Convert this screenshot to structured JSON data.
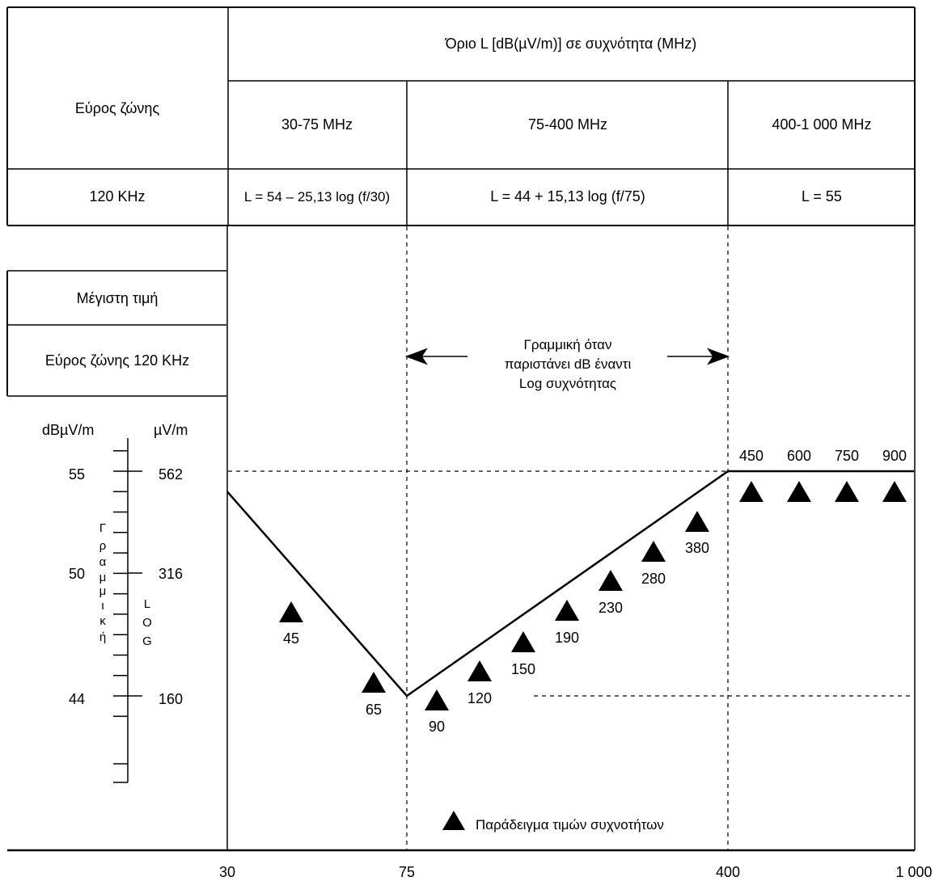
{
  "table": {
    "header_main": "Όριο L [dB(µV/m)] σε συχνότητα (MHz)",
    "bandwidth_header": "Εύρος ζώνης",
    "bands": [
      "30-75 MHz",
      "75-400 MHz",
      "400-1 000 MHz"
    ],
    "bandwidth_value": "120 KHz",
    "formulas": [
      "L = 54 – 25,13 log (f/30)",
      "L = 44 + 15,13 log (f/75)",
      "L = 55"
    ]
  },
  "left_panel": {
    "max_value": "Μέγιστη τιμή",
    "bandwidth": "Εύρος ζώνης 120 KHz",
    "unit_db": "dBµV/m",
    "unit_uv": "µV/m",
    "db_values": [
      "55",
      "50",
      "44"
    ],
    "uv_values": [
      "562",
      "316",
      "160"
    ],
    "linear_letters": [
      "Γ",
      "ρ",
      "α",
      "μ",
      "μ",
      "ι",
      "κ",
      "ή"
    ],
    "log_letters": [
      "L",
      "O",
      "G"
    ]
  },
  "annotation": {
    "line1": "Γραμμική όταν",
    "line2": "παριστάνει dB έναντι",
    "line3": "Log συχνότητας"
  },
  "legend": {
    "label": "Παράδειγμα τιμών συχνοτήτων"
  },
  "x_axis": {
    "ticks": [
      "30",
      "75",
      "400",
      "1 000"
    ]
  },
  "chart_data": {
    "type": "line",
    "x_scale": "log",
    "x_unit": "MHz",
    "y_unit": "dBµV/m",
    "xlim": [
      30,
      1000
    ],
    "limit_line": {
      "x": [
        30,
        75,
        400,
        1000
      ],
      "y": [
        54,
        44,
        55,
        55
      ]
    },
    "sample_frequencies": [
      "45",
      "65",
      "90",
      "120",
      "150",
      "190",
      "230",
      "280",
      "380",
      "450",
      "600",
      "750",
      "900"
    ]
  },
  "colors": {
    "line": "#000000",
    "background": "#ffffff"
  }
}
